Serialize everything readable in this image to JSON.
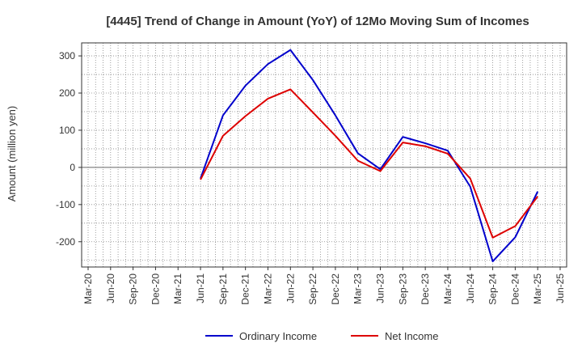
{
  "chart_data": {
    "type": "line",
    "title": "[4445]  Trend of Change in Amount (YoY) of 12Mo Moving Sum of Incomes",
    "xlabel": "",
    "ylabel": "Amount (million yen)",
    "x_ticks": [
      "Mar-20",
      "Jun-20",
      "Sep-20",
      "Dec-20",
      "Mar-21",
      "Jun-21",
      "Sep-21",
      "Dec-21",
      "Mar-22",
      "Jun-22",
      "Sep-22",
      "Dec-22",
      "Mar-23",
      "Jun-23",
      "Sep-23",
      "Dec-23",
      "Mar-24",
      "Jun-24",
      "Sep-24",
      "Dec-24",
      "Mar-25",
      "Jun-25"
    ],
    "y_ticks": [
      300,
      200,
      100,
      0,
      -100,
      -200
    ],
    "ylim": [
      -268,
      335
    ],
    "grid": true,
    "legend_position": "bottom",
    "categories": [
      "Jun-21",
      "Sep-21",
      "Dec-21",
      "Mar-22",
      "Jun-22",
      "Sep-22",
      "Dec-22",
      "Mar-23",
      "Jun-23",
      "Sep-23",
      "Dec-23",
      "Mar-24",
      "Jun-24",
      "Sep-24",
      "Dec-24",
      "Mar-25"
    ],
    "series": [
      {
        "name": "Ordinary Income",
        "color": "#0000cc",
        "values": [
          -30,
          140,
          220,
          278,
          316,
          235,
          140,
          38,
          -5,
          82,
          65,
          45,
          -52,
          -253,
          -188,
          -65
        ]
      },
      {
        "name": "Net Income",
        "color": "#dd0000",
        "values": [
          -33,
          85,
          138,
          185,
          210,
          148,
          85,
          18,
          -10,
          67,
          57,
          37,
          -30,
          -189,
          -158,
          -78
        ]
      }
    ]
  }
}
